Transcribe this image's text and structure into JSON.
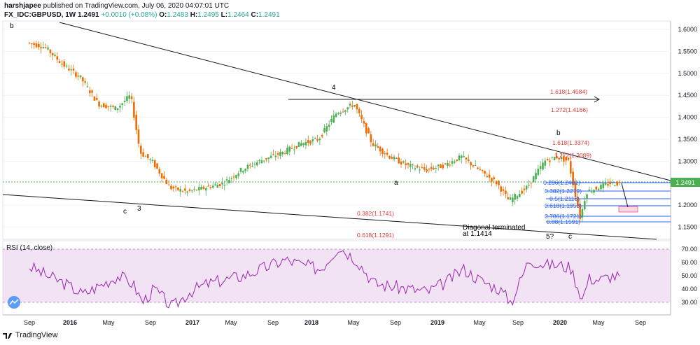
{
  "header": {
    "user": "harshjapee",
    "published": "published on TradingView.com, July 06, 2020 04:07:01 UTC",
    "symbol": "FX_IDC:GBPUSD, 1W",
    "last": "1.2491",
    "change": "+0.0010 (+0.08%)",
    "o_label": "O:",
    "o_value": "1.2483",
    "h_label": "H:",
    "h_value": "1.2495",
    "l_label": "L:",
    "l_value": "1.2464",
    "c_label": "C:",
    "c_value": "1.2491"
  },
  "footer": {
    "brand": "TradingView"
  },
  "colors": {
    "up": "#26a69a",
    "upBright": "#4caf50",
    "down": "#ef6c00",
    "rsi": "#9c27b0",
    "trend": "#131722",
    "fibBlue": "#2962ff",
    "fibRed": "#e53935",
    "lastPrice": "#00897b"
  },
  "chart_data": [
    {
      "type": "line",
      "title": "FX_IDC:GBPUSD, 1W",
      "y_axis_side": "right",
      "ylim": [
        1.12,
        1.61
      ],
      "y_ticks": [
        "1.6000",
        "1.5500",
        "1.5000",
        "1.4500",
        "1.4000",
        "1.3500",
        "1.3000",
        "1.2491",
        "1.2000",
        "1.1500"
      ],
      "x_ticks": [
        "Sep",
        "2016",
        "May",
        "Sep",
        "2017",
        "May",
        "Sep",
        "2018",
        "May",
        "Sep",
        "2019",
        "May",
        "Sep",
        "2020",
        "May",
        "Sep"
      ],
      "x": [
        2015.55,
        2015.7,
        2015.85,
        2016.0,
        2016.15,
        2016.3,
        2016.42,
        2016.5,
        2016.6,
        2016.75,
        2016.9,
        2017.05,
        2017.2,
        2017.35,
        2017.5,
        2017.7,
        2017.85,
        2018.0,
        2018.15,
        2018.3,
        2018.45,
        2018.6,
        2018.75,
        2018.9,
        2019.05,
        2019.2,
        2019.35,
        2019.5,
        2019.6,
        2019.75,
        2019.9,
        2020.0,
        2020.1,
        2020.2,
        2020.25,
        2020.35,
        2020.45,
        2020.51
      ],
      "series": [
        {
          "values": [
            1.57,
            1.56,
            1.52,
            1.49,
            1.43,
            1.42,
            1.45,
            1.32,
            1.3,
            1.24,
            1.23,
            1.24,
            1.25,
            1.28,
            1.3,
            1.32,
            1.34,
            1.35,
            1.41,
            1.43,
            1.34,
            1.31,
            1.29,
            1.28,
            1.29,
            1.31,
            1.28,
            1.25,
            1.21,
            1.24,
            1.3,
            1.31,
            1.3,
            1.17,
            1.23,
            1.24,
            1.25,
            1.2491
          ]
        }
      ],
      "annotations": [
        "b",
        "c",
        "3",
        "4",
        "b",
        "a",
        "5?",
        "c",
        "Diagonal terminated",
        "at 1.1414"
      ],
      "fib_levels_blue": [
        "0.236(1.2481)",
        "0.382(1.2279)",
        "0.5(1.2116)",
        "0.618(1.1953)",
        "0.786(1.1721)",
        "0.88(1.1591)"
      ],
      "fib_levels_red": [
        "1.618(1.4584)",
        "1.272(1.4166)",
        "1.618(1.3374)",
        "1.272(1.3089)",
        "0.382(1.1741)",
        "0.618(1.1291)"
      ],
      "last_price": "1.2491"
    },
    {
      "type": "line",
      "title": "RSI (14, close)",
      "ylim": [
        22,
        76
      ],
      "y_ticks": [
        "70.00",
        "60.00",
        "50.00",
        "40.00",
        "30.00"
      ],
      "band": [
        30,
        70
      ],
      "x": [
        2015.55,
        2015.7,
        2015.85,
        2016.0,
        2016.15,
        2016.3,
        2016.42,
        2016.5,
        2016.6,
        2016.75,
        2016.9,
        2017.05,
        2017.2,
        2017.35,
        2017.5,
        2017.7,
        2017.85,
        2018.0,
        2018.15,
        2018.3,
        2018.45,
        2018.6,
        2018.75,
        2018.9,
        2019.05,
        2019.2,
        2019.35,
        2019.5,
        2019.6,
        2019.75,
        2019.9,
        2020.0,
        2020.1,
        2020.2,
        2020.25,
        2020.35,
        2020.45,
        2020.51
      ],
      "series": [
        {
          "name": "RSI (14, close)",
          "values": [
            57,
            50,
            44,
            36,
            43,
            50,
            44,
            30,
            40,
            26,
            38,
            44,
            47,
            50,
            55,
            62,
            58,
            55,
            72,
            62,
            44,
            42,
            40,
            38,
            45,
            55,
            46,
            40,
            30,
            62,
            58,
            58,
            56,
            32,
            48,
            47,
            50,
            49
          ]
        }
      ]
    }
  ]
}
